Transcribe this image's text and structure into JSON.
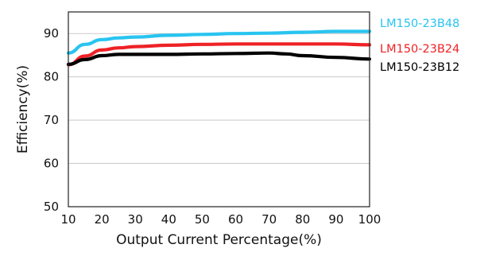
{
  "chart_data": {
    "type": "line",
    "title": "",
    "xlabel": "Output Current Percentage(%)",
    "ylabel": "Efficiency(%)",
    "xlim": [
      10,
      100
    ],
    "ylim": [
      50,
      95
    ],
    "xticks": [
      10,
      20,
      30,
      40,
      50,
      60,
      70,
      80,
      90,
      100
    ],
    "yticks": [
      50,
      60,
      70,
      80,
      90
    ],
    "grid": "horizontal",
    "legend_placement": "right",
    "series": [
      {
        "name": "LM150-23B48",
        "color": "#29c4f0",
        "x": [
          10,
          15,
          20,
          25,
          30,
          40,
          50,
          60,
          70,
          80,
          90,
          100
        ],
        "y": [
          85.5,
          87.5,
          88.6,
          89.0,
          89.2,
          89.6,
          89.8,
          90.0,
          90.1,
          90.3,
          90.5,
          90.5
        ]
      },
      {
        "name": "LM150-23B24",
        "color": "#ee2226",
        "x": [
          10,
          15,
          20,
          25,
          30,
          40,
          50,
          60,
          70,
          80,
          90,
          100
        ],
        "y": [
          82.8,
          84.8,
          86.2,
          86.7,
          87.0,
          87.3,
          87.5,
          87.6,
          87.6,
          87.6,
          87.6,
          87.4
        ]
      },
      {
        "name": "LM150-23B12",
        "color": "#000000",
        "x": [
          10,
          15,
          20,
          25,
          30,
          40,
          50,
          60,
          70,
          75,
          80,
          90,
          100
        ],
        "y": [
          82.9,
          84.0,
          84.9,
          85.2,
          85.2,
          85.2,
          85.3,
          85.4,
          85.5,
          85.3,
          84.9,
          84.5,
          84.1
        ]
      }
    ]
  }
}
